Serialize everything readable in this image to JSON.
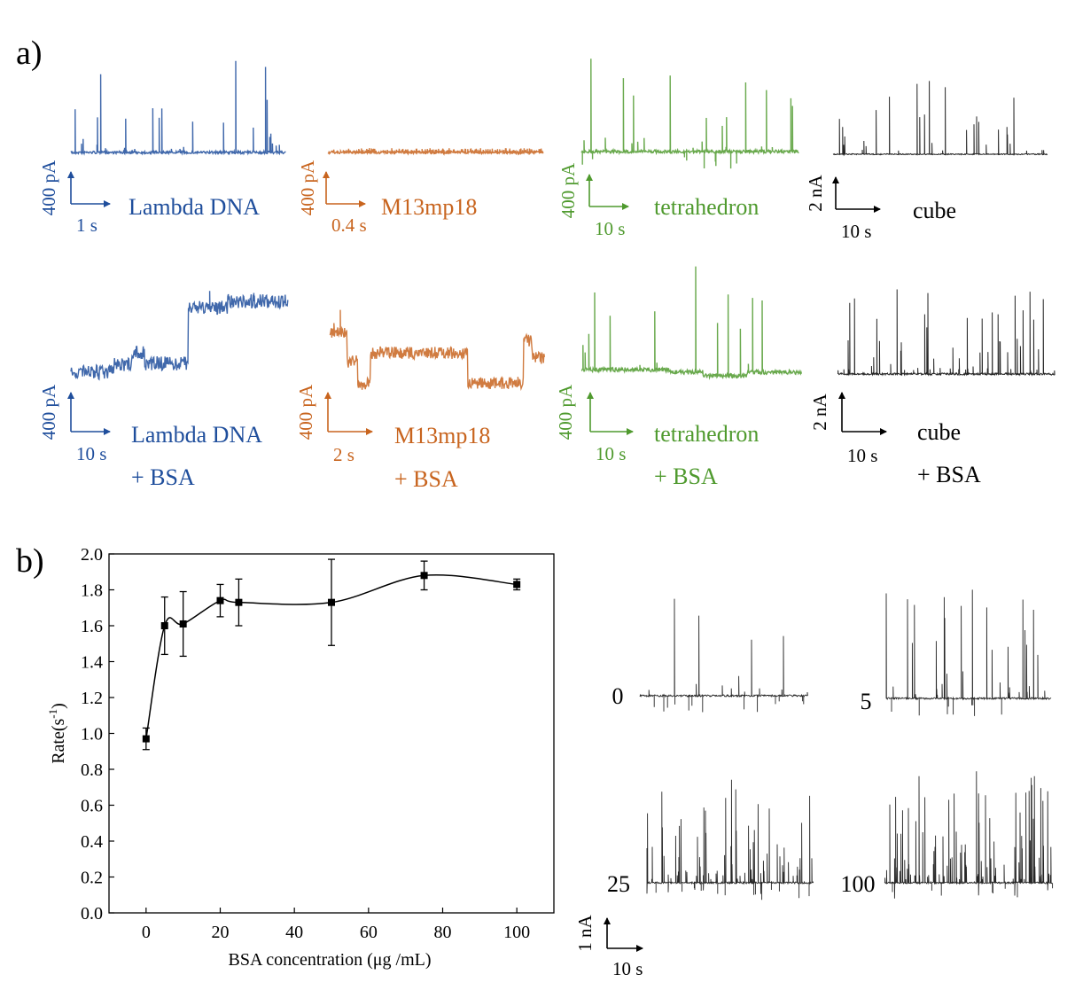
{
  "panel_labels": [
    "a)",
    "b)"
  ],
  "panel_a_traces": [
    {
      "name": "Lambda DNA",
      "scale_y": "400 pA",
      "scale_x": "1 s",
      "color": "#1f4e9c"
    },
    {
      "name": "M13mp18",
      "scale_y": "400 pA",
      "scale_x": "0.4 s",
      "color": "#c8641e"
    },
    {
      "name": "tetrahedron",
      "scale_y": "400 pA",
      "scale_x": "10 s",
      "color": "#4f9a2e"
    },
    {
      "name": "cube",
      "scale_y": "2 nA",
      "scale_x": "10 s",
      "color": "#000000"
    },
    {
      "name": "Lambda DNA",
      "suffix": "+ BSA",
      "scale_y": "400 pA",
      "scale_x": "10 s",
      "color": "#1f4e9c"
    },
    {
      "name": "M13mp18",
      "suffix": "+ BSA",
      "scale_y": "400 pA",
      "scale_x": "2 s",
      "color": "#c8641e"
    },
    {
      "name": "tetrahedron",
      "suffix": "+ BSA",
      "scale_y": "400 pA",
      "scale_x": "10 s",
      "color": "#4f9a2e"
    },
    {
      "name": "cube",
      "suffix": "+ BSA",
      "scale_y": "2 nA",
      "scale_x": "10 s",
      "color": "#000000"
    }
  ],
  "panel_b_traces": {
    "labels": [
      "0",
      "5",
      "25",
      "100"
    ],
    "scale_y": "1 nA",
    "scale_x": "10 s"
  },
  "chart_data": {
    "type": "scatter",
    "x_label": "BSA concentration (μg /mL)",
    "y_label": {
      "text": "Rate(s",
      "sup": "-1",
      "end": ")"
    },
    "x": [
      0,
      5,
      10,
      20,
      25,
      50,
      75,
      100
    ],
    "series": [
      {
        "color": "#000000",
        "values": [
          0.97,
          1.6,
          1.61,
          1.74,
          1.73,
          1.73,
          1.88,
          1.83
        ],
        "errors": [
          0.06,
          0.16,
          0.18,
          0.09,
          0.13,
          0.24,
          0.08,
          0.03
        ]
      }
    ],
    "xlim": [
      -10,
      110
    ],
    "ylim": [
      0,
      2
    ],
    "xticks": [
      0,
      20,
      40,
      60,
      80,
      100
    ],
    "yticks": [
      {
        "value": 0,
        "label": "0.0"
      },
      {
        "value": 0.2,
        "label": "0.2"
      },
      {
        "value": 0.4,
        "label": "0.4"
      },
      {
        "value": 0.6,
        "label": "0.6"
      },
      {
        "value": 0.8,
        "label": "0.8"
      },
      {
        "value": 1,
        "label": "1.0"
      },
      {
        "value": 1.2,
        "label": "1.2"
      },
      {
        "value": 1.4,
        "label": "1.4"
      },
      {
        "value": 1.6,
        "label": "1.6"
      },
      {
        "value": 1.8,
        "label": "1.8"
      },
      {
        "value": 2,
        "label": "2.0"
      }
    ]
  }
}
